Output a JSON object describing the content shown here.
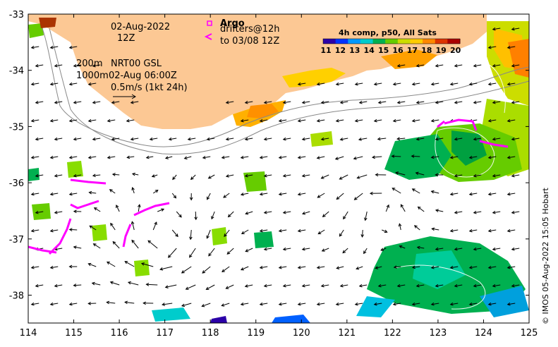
{
  "map": {
    "lon_ticks": [
      "114",
      "115",
      "116",
      "117",
      "118",
      "119",
      "120",
      "121",
      "122",
      "123",
      "124",
      "125"
    ],
    "lat_ticks": [
      "-33",
      "-34",
      "-35",
      "-36",
      "-37",
      "-38"
    ],
    "colors": {
      "land": "#fcc894",
      "ocean": "#ffffff",
      "frame": "#000000",
      "argo": "#ff00ff"
    }
  },
  "annotations": {
    "date": "02-Aug-2022",
    "time": "12Z",
    "argo_label": "Argo",
    "drifters_label": "drifters@12h",
    "drifters_until": "to 03/08 12Z",
    "contour_200": "200m",
    "contour_1000": "1000m",
    "product": "NRT00 GSL",
    "product_time": "02-Aug 06:00Z",
    "scale": "0.5m/s (1kt 24h)"
  },
  "legend": {
    "title": "4h comp, p50, All Sats",
    "ticks": [
      "11",
      "12",
      "13",
      "14",
      "15",
      "16",
      "17",
      "18",
      "19",
      "20"
    ],
    "colors": [
      "#2b00a8",
      "#0033ff",
      "#0099ff",
      "#00cccc",
      "#00b050",
      "#66cc00",
      "#ccdd00",
      "#ffcc00",
      "#ff8800",
      "#dd3300",
      "#aa0000"
    ]
  },
  "credit": "© IMOS 05-Aug-2022 15:05 Hobart"
}
